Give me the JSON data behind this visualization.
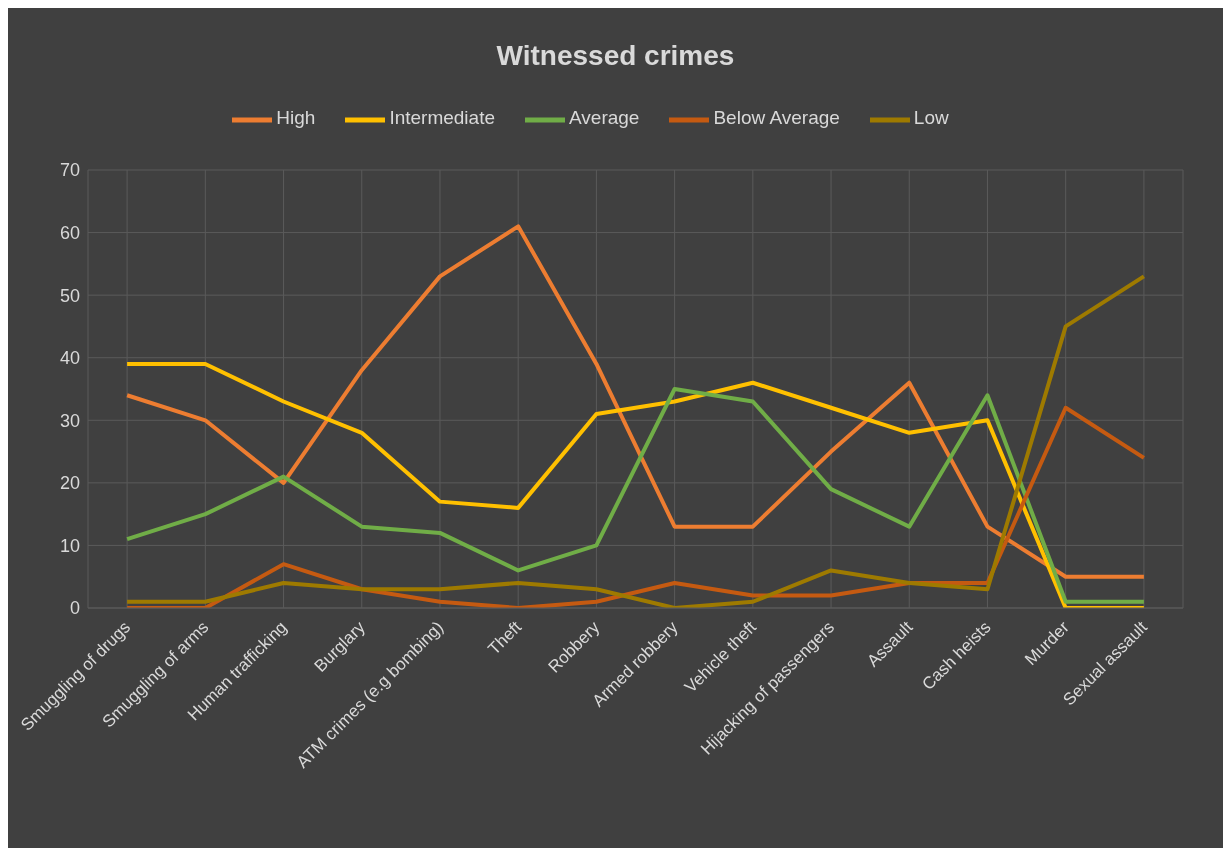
{
  "chart_data": {
    "type": "line",
    "title": "Witnessed crimes",
    "categories": [
      "Smuggling of drugs",
      "Smuggling of arms",
      "Human trafficking",
      "Burglary",
      "ATM crimes (e.g bombing)",
      "Theft",
      "Robbery",
      "Armed robbery",
      "Vehicle theft",
      "Hijacking of passengers",
      "Assault",
      "Cash heists",
      "Murder",
      "Sexual assault"
    ],
    "series": [
      {
        "name": "High",
        "color": "#ed7d31",
        "values": [
          34,
          30,
          20,
          38,
          53,
          61,
          39,
          13,
          13,
          25,
          36,
          13,
          5,
          5
        ]
      },
      {
        "name": "Intermediate",
        "color": "#ffc000",
        "values": [
          39,
          39,
          33,
          28,
          17,
          16,
          31,
          33,
          36,
          32,
          28,
          30,
          0,
          0
        ]
      },
      {
        "name": "Average",
        "color": "#70ad47",
        "values": [
          11,
          15,
          21,
          13,
          12,
          6,
          10,
          35,
          33,
          19,
          13,
          34,
          1,
          1
        ]
      },
      {
        "name": "Below Average",
        "color": "#c55a11",
        "values": [
          0,
          0,
          7,
          3,
          1,
          0,
          1,
          4,
          2,
          2,
          4,
          4,
          32,
          24
        ]
      },
      {
        "name": "Low",
        "color": "#9e7a00",
        "values": [
          1,
          1,
          4,
          3,
          3,
          4,
          3,
          0,
          1,
          6,
          4,
          3,
          45,
          53
        ]
      }
    ],
    "ylim": [
      0,
      70
    ],
    "yticks": [
      0,
      10,
      20,
      30,
      40,
      50,
      60,
      70
    ],
    "grid": true,
    "legend": "top",
    "marker": "none",
    "line_style": "solid"
  }
}
